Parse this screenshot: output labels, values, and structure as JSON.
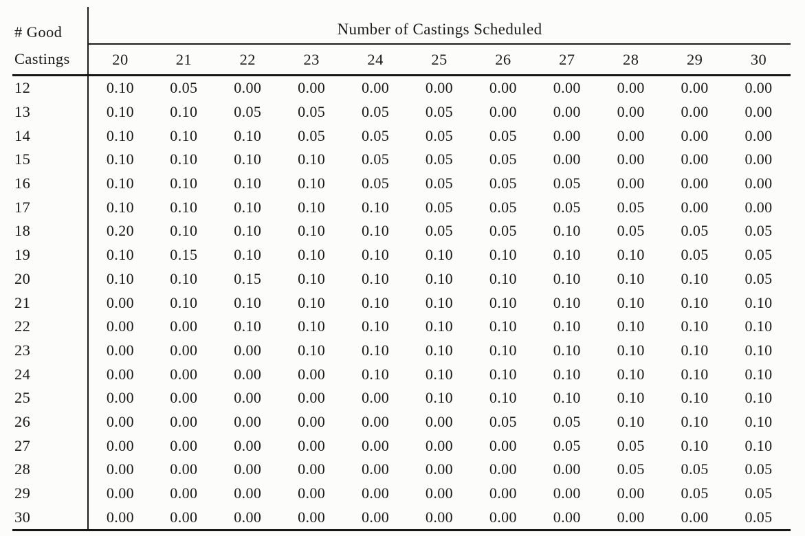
{
  "table": {
    "corner_header": {
      "line1": "# Good",
      "line2": "Castings"
    },
    "spanner": "Number of Castings Scheduled",
    "columns": [
      "20",
      "21",
      "22",
      "23",
      "24",
      "25",
      "26",
      "27",
      "28",
      "29",
      "30"
    ],
    "rows": [
      {
        "label": "12",
        "values": [
          "0.10",
          "0.05",
          "0.00",
          "0.00",
          "0.00",
          "0.00",
          "0.00",
          "0.00",
          "0.00",
          "0.00",
          "0.00"
        ]
      },
      {
        "label": "13",
        "values": [
          "0.10",
          "0.10",
          "0.05",
          "0.05",
          "0.05",
          "0.05",
          "0.00",
          "0.00",
          "0.00",
          "0.00",
          "0.00"
        ]
      },
      {
        "label": "14",
        "values": [
          "0.10",
          "0.10",
          "0.10",
          "0.05",
          "0.05",
          "0.05",
          "0.05",
          "0.00",
          "0.00",
          "0.00",
          "0.00"
        ]
      },
      {
        "label": "15",
        "values": [
          "0.10",
          "0.10",
          "0.10",
          "0.10",
          "0.05",
          "0.05",
          "0.05",
          "0.00",
          "0.00",
          "0.00",
          "0.00"
        ]
      },
      {
        "label": "16",
        "values": [
          "0.10",
          "0.10",
          "0.10",
          "0.10",
          "0.05",
          "0.05",
          "0.05",
          "0.05",
          "0.00",
          "0.00",
          "0.00"
        ]
      },
      {
        "label": "17",
        "values": [
          "0.10",
          "0.10",
          "0.10",
          "0.10",
          "0.10",
          "0.05",
          "0.05",
          "0.05",
          "0.05",
          "0.00",
          "0.00"
        ]
      },
      {
        "label": "18",
        "values": [
          "0.20",
          "0.10",
          "0.10",
          "0.10",
          "0.10",
          "0.05",
          "0.05",
          "0.10",
          "0.05",
          "0.05",
          "0.05"
        ]
      },
      {
        "label": "19",
        "values": [
          "0.10",
          "0.15",
          "0.10",
          "0.10",
          "0.10",
          "0.10",
          "0.10",
          "0.10",
          "0.10",
          "0.05",
          "0.05"
        ]
      },
      {
        "label": "20",
        "values": [
          "0.10",
          "0.10",
          "0.15",
          "0.10",
          "0.10",
          "0.10",
          "0.10",
          "0.10",
          "0.10",
          "0.10",
          "0.05"
        ]
      },
      {
        "label": "21",
        "values": [
          "0.00",
          "0.10",
          "0.10",
          "0.10",
          "0.10",
          "0.10",
          "0.10",
          "0.10",
          "0.10",
          "0.10",
          "0.10"
        ]
      },
      {
        "label": "22",
        "values": [
          "0.00",
          "0.00",
          "0.10",
          "0.10",
          "0.10",
          "0.10",
          "0.10",
          "0.10",
          "0.10",
          "0.10",
          "0.10"
        ]
      },
      {
        "label": "23",
        "values": [
          "0.00",
          "0.00",
          "0.00",
          "0.10",
          "0.10",
          "0.10",
          "0.10",
          "0.10",
          "0.10",
          "0.10",
          "0.10"
        ]
      },
      {
        "label": "24",
        "values": [
          "0.00",
          "0.00",
          "0.00",
          "0.00",
          "0.10",
          "0.10",
          "0.10",
          "0.10",
          "0.10",
          "0.10",
          "0.10"
        ]
      },
      {
        "label": "25",
        "values": [
          "0.00",
          "0.00",
          "0.00",
          "0.00",
          "0.00",
          "0.10",
          "0.10",
          "0.10",
          "0.10",
          "0.10",
          "0.10"
        ]
      },
      {
        "label": "26",
        "values": [
          "0.00",
          "0.00",
          "0.00",
          "0.00",
          "0.00",
          "0.00",
          "0.05",
          "0.05",
          "0.10",
          "0.10",
          "0.10"
        ]
      },
      {
        "label": "27",
        "values": [
          "0.00",
          "0.00",
          "0.00",
          "0.00",
          "0.00",
          "0.00",
          "0.00",
          "0.05",
          "0.05",
          "0.10",
          "0.10"
        ]
      },
      {
        "label": "28",
        "values": [
          "0.00",
          "0.00",
          "0.00",
          "0.00",
          "0.00",
          "0.00",
          "0.00",
          "0.00",
          "0.05",
          "0.05",
          "0.05"
        ]
      },
      {
        "label": "29",
        "values": [
          "0.00",
          "0.00",
          "0.00",
          "0.00",
          "0.00",
          "0.00",
          "0.00",
          "0.00",
          "0.00",
          "0.05",
          "0.05"
        ]
      },
      {
        "label": "30",
        "values": [
          "0.00",
          "0.00",
          "0.00",
          "0.00",
          "0.00",
          "0.00",
          "0.00",
          "0.00",
          "0.00",
          "0.00",
          "0.05"
        ]
      }
    ]
  }
}
